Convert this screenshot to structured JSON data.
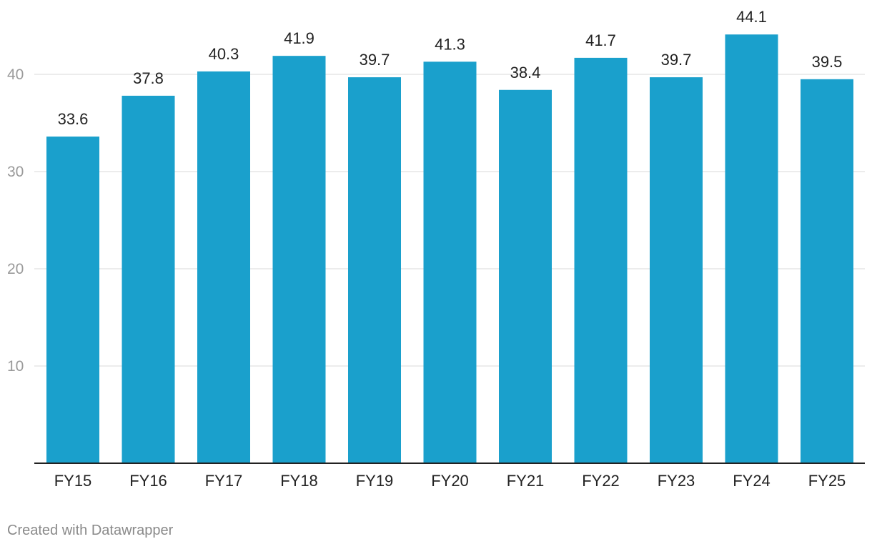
{
  "chart_data": {
    "type": "bar",
    "categories": [
      "FY15",
      "FY16",
      "FY17",
      "FY18",
      "FY19",
      "FY20",
      "FY21",
      "FY22",
      "FY23",
      "FY24",
      "FY25"
    ],
    "values": [
      33.6,
      37.8,
      40.3,
      41.9,
      39.7,
      41.3,
      38.4,
      41.7,
      39.7,
      44.1,
      39.5
    ],
    "value_labels": [
      "33.6",
      "37.8",
      "40.3",
      "41.9",
      "39.7",
      "41.3",
      "38.4",
      "41.7",
      "39.7",
      "44.1",
      "39.5"
    ],
    "title": "",
    "xlabel": "",
    "ylabel": "",
    "ylim": [
      0,
      44.1
    ],
    "yticks": [
      10,
      20,
      30,
      40
    ],
    "grid": true,
    "legend": "none",
    "bar_color": "#1aa0cc"
  },
  "footer": {
    "credit": "Created with Datawrapper"
  }
}
